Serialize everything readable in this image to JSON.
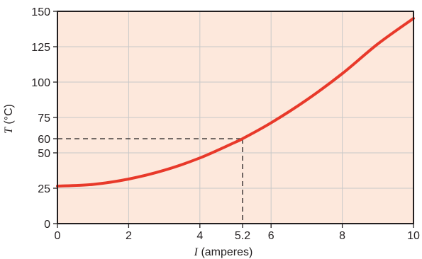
{
  "chart_data": {
    "type": "line",
    "title": "",
    "xlabel_symbol": "I",
    "xlabel_unit": "(amperes)",
    "ylabel_symbol": "T",
    "ylabel_unit": "(°C)",
    "xlim": [
      0,
      10
    ],
    "ylim": [
      0,
      150
    ],
    "grid": true,
    "x_ticks": [
      0,
      2,
      4,
      5.2,
      6,
      8,
      10
    ],
    "x_tick_labels": [
      "0",
      "2",
      "4",
      "5.2",
      "6",
      "8",
      "10"
    ],
    "y_ticks": [
      0,
      25,
      50,
      60,
      75,
      100,
      125,
      150
    ],
    "y_tick_labels": [
      "0",
      "25",
      "50",
      "60",
      "75",
      "100",
      "125",
      "150"
    ],
    "series": [
      {
        "x": [
          0,
          1,
          2,
          3,
          4,
          5,
          5.2,
          6,
          7,
          8,
          9,
          10
        ],
        "y": [
          26.5,
          27.7,
          31.5,
          37.7,
          46.4,
          57.6,
          60,
          71.2,
          87.4,
          106,
          127,
          145
        ],
        "color": "#e8392a"
      }
    ],
    "reference_point": {
      "x": 5.2,
      "y": 60,
      "style": "dashed"
    },
    "plot_background": "#fde8dc",
    "grid_color": "#c8c8c8",
    "frame_color": "#231f20"
  }
}
